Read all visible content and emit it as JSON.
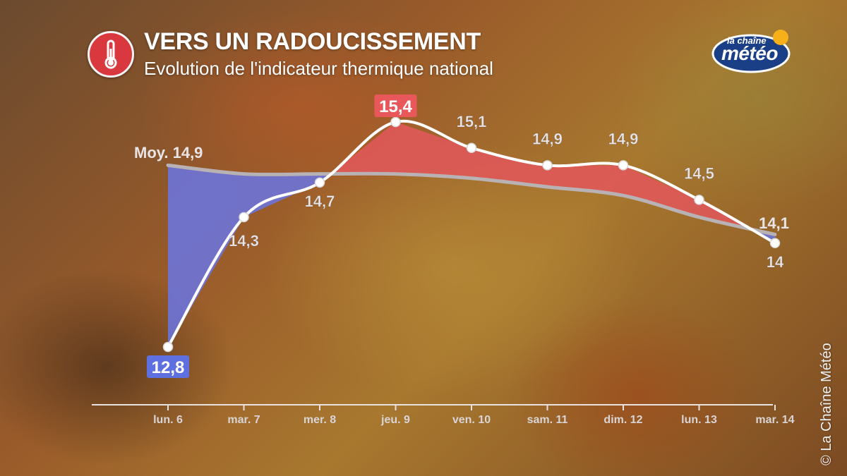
{
  "header": {
    "title": "VERS UN RADOUCISSEMENT",
    "subtitle": "Evolution de l'indicateur thermique national",
    "icon": "thermometer-icon"
  },
  "brand": {
    "line1": "la chaîne",
    "line2": "météo"
  },
  "copyright": "© La Chaîne Météo",
  "colors": {
    "above_average": "#e0585a",
    "below_average": "#6b74de",
    "line": "#ffffff",
    "average_line": "#b9b2b4",
    "max_label_bg": "#e8585b",
    "min_label_bg": "#5e6fe0"
  },
  "chart_data": {
    "type": "line",
    "categories": [
      "lun. 6",
      "mar. 7",
      "mer. 8",
      "jeu. 9",
      "ven. 10",
      "sam. 11",
      "dim. 12",
      "lun. 13",
      "mar. 14"
    ],
    "series": [
      {
        "values": [
          12.8,
          14.3,
          14.7,
          15.4,
          15.1,
          14.9,
          14.9,
          14.5,
          14.0
        ]
      },
      {
        "name": "Moy.",
        "values": [
          14.9,
          14.8,
          14.8,
          14.8,
          14.75,
          14.65,
          14.55,
          14.3,
          14.1
        ]
      }
    ],
    "value_labels": [
      "12,8",
      "14,3",
      "14,7",
      "15,4",
      "15,1",
      "14,9",
      "14,9",
      "14,5",
      "14"
    ],
    "average_label": "Moy. 14,9",
    "average_end_label": "14,1",
    "highlight": {
      "max_index": 3,
      "min_index": 0
    },
    "ylim": [
      12.6,
      15.6
    ],
    "grid": false
  }
}
